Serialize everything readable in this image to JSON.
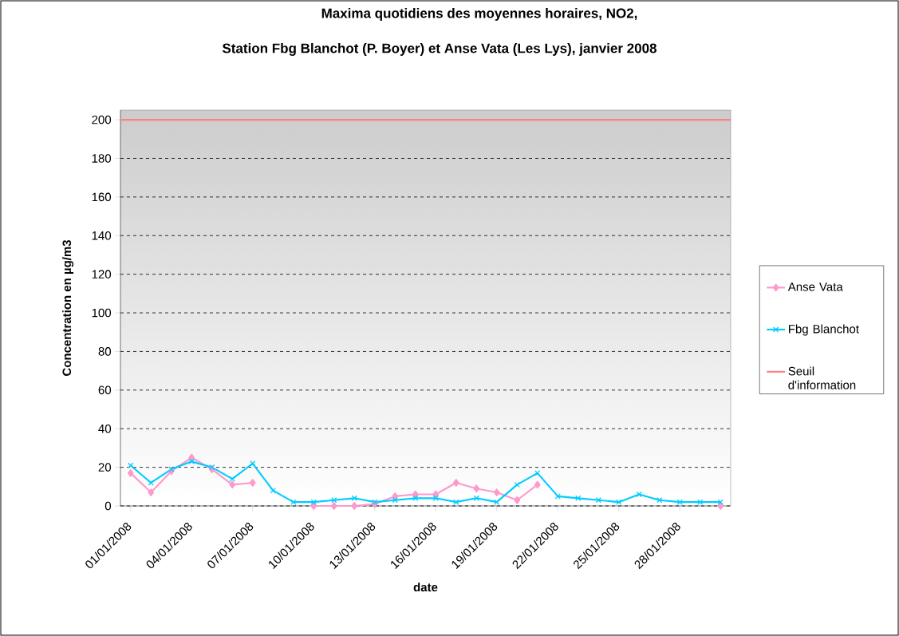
{
  "chart_data": {
    "type": "line",
    "title": "Maxima quotidiens des moyennes horaires, NO2,",
    "subtitle": "Station Fbg Blanchot (P. Boyer) et Anse Vata (Les Lys),  janvier 2008",
    "xlabel": "date",
    "ylabel": "Concentration en µg/m3",
    "categories": [
      "01/01/2008",
      null,
      null,
      "04/01/2008",
      null,
      null,
      "07/01/2008",
      null,
      null,
      "10/01/2008",
      null,
      null,
      "13/01/2008",
      null,
      null,
      "16/01/2008",
      null,
      null,
      "19/01/2008",
      null,
      null,
      "22/01/2008",
      null,
      null,
      "25/01/2008",
      null,
      null,
      "28/01/2008",
      null,
      null
    ],
    "series": [
      {
        "name": "Anse Vata",
        "color": "#ff99cc",
        "marker": "diamond",
        "values": [
          17,
          7,
          18,
          25,
          19,
          11,
          12,
          null,
          null,
          0,
          0,
          0,
          1,
          5,
          6,
          6,
          12,
          9,
          7,
          3,
          11,
          null,
          null,
          null,
          null,
          null,
          null,
          null,
          null,
          0
        ]
      },
      {
        "name": "Fbg Blanchot",
        "color": "#00ccff",
        "marker": "cross",
        "values": [
          21,
          12,
          19,
          23,
          20,
          14,
          22,
          8,
          2,
          2,
          3,
          4,
          2,
          3,
          4,
          4,
          2,
          4,
          2,
          11,
          17,
          5,
          4,
          3,
          2,
          6,
          3,
          2,
          2,
          2
        ]
      }
    ],
    "ref_lines": [
      {
        "axis": "y",
        "value": 200,
        "label": "Seuil d'information",
        "color": "#ff8080"
      }
    ],
    "ylim": [
      0,
      205
    ],
    "yticks": [
      0,
      20,
      40,
      60,
      80,
      100,
      120,
      140,
      160,
      180,
      200
    ],
    "grid": "y",
    "legend": "right",
    "line_style": "solid"
  }
}
